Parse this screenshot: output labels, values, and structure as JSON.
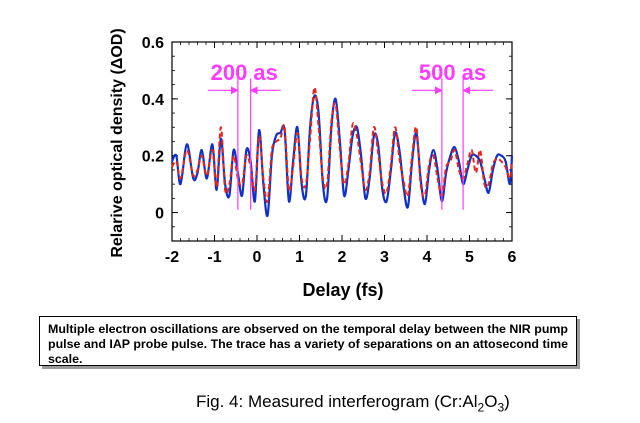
{
  "chart_data": {
    "type": "line",
    "title": "",
    "xlabel": "Delay (fs)",
    "ylabel": "Relarive optical density (ΔOD)",
    "xlim": [
      -2,
      6
    ],
    "ylim": [
      -0.1,
      0.6
    ],
    "xticks": [
      "-2",
      "-1",
      "0",
      "1",
      "2",
      "3",
      "4",
      "5",
      "6"
    ],
    "yticks": [
      "0",
      "0.2",
      "0.4",
      "0.6"
    ],
    "grid": false,
    "legend": "none",
    "series": [
      {
        "color": "#1030c8",
        "style": "solid",
        "x": [
          -2.0,
          -1.9,
          -1.8,
          -1.65,
          -1.5,
          -1.4,
          -1.3,
          -1.18,
          -1.05,
          -0.95,
          -0.85,
          -0.75,
          -0.65,
          -0.55,
          -0.45,
          -0.35,
          -0.25,
          -0.15,
          -0.05,
          0.05,
          0.15,
          0.25,
          0.35,
          0.45,
          0.55,
          0.65,
          0.75,
          0.85,
          0.95,
          1.05,
          1.15,
          1.25,
          1.35,
          1.45,
          1.55,
          1.65,
          1.75,
          1.85,
          1.95,
          2.05,
          2.15,
          2.25,
          2.35,
          2.45,
          2.55,
          2.65,
          2.75,
          2.85,
          2.95,
          3.05,
          3.15,
          3.25,
          3.35,
          3.45,
          3.55,
          3.65,
          3.75,
          3.85,
          3.95,
          4.05,
          4.15,
          4.25,
          4.35,
          4.45,
          4.55,
          4.65,
          4.75,
          4.85,
          4.95,
          5.05,
          5.15,
          5.25,
          5.35,
          5.45,
          5.55,
          5.65,
          5.75,
          5.85,
          5.95,
          6.0
        ],
        "y": [
          0.18,
          0.2,
          0.1,
          0.24,
          0.12,
          0.14,
          0.22,
          0.12,
          0.24,
          0.08,
          0.26,
          0.1,
          0.06,
          0.22,
          0.14,
          0.06,
          0.22,
          0.18,
          0.04,
          0.29,
          0.1,
          -0.01,
          0.2,
          0.27,
          0.28,
          0.29,
          0.04,
          0.18,
          0.3,
          0.1,
          0.06,
          0.3,
          0.41,
          0.35,
          0.1,
          0.05,
          0.3,
          0.4,
          0.25,
          0.06,
          0.15,
          0.27,
          0.3,
          0.2,
          0.05,
          0.12,
          0.27,
          0.24,
          0.08,
          0.04,
          0.15,
          0.28,
          0.22,
          0.09,
          0.02,
          0.18,
          0.28,
          0.12,
          0.03,
          0.15,
          0.22,
          0.15,
          0.04,
          0.14,
          0.2,
          0.23,
          0.18,
          0.1,
          0.15,
          0.2,
          0.2,
          0.18,
          0.12,
          0.07,
          0.15,
          0.2,
          0.2,
          0.18,
          0.1,
          0.2
        ]
      },
      {
        "color": "#e0261e",
        "style": "dashed",
        "x": [
          -2.0,
          -1.9,
          -1.8,
          -1.65,
          -1.5,
          -1.4,
          -1.3,
          -1.18,
          -1.05,
          -0.95,
          -0.85,
          -0.75,
          -0.65,
          -0.55,
          -0.45,
          -0.35,
          -0.25,
          -0.15,
          -0.05,
          0.05,
          0.15,
          0.25,
          0.35,
          0.45,
          0.55,
          0.65,
          0.75,
          0.85,
          0.95,
          1.05,
          1.15,
          1.25,
          1.35,
          1.45,
          1.55,
          1.65,
          1.75,
          1.85,
          1.95,
          2.05,
          2.15,
          2.25,
          2.35,
          2.45,
          2.55,
          2.65,
          2.75,
          2.85,
          2.95,
          3.05,
          3.15,
          3.25,
          3.35,
          3.45,
          3.55,
          3.65,
          3.75,
          3.85,
          3.95,
          4.05,
          4.15,
          4.25,
          4.35,
          4.45,
          4.55,
          4.65,
          4.75,
          4.85,
          4.95,
          5.05,
          5.15,
          5.25,
          5.35,
          5.45,
          5.55,
          5.65,
          5.75,
          5.85,
          5.95,
          6.0
        ],
        "y": [
          0.16,
          0.18,
          0.12,
          0.22,
          0.13,
          0.15,
          0.2,
          0.13,
          0.22,
          0.09,
          0.3,
          0.08,
          0.1,
          0.2,
          0.12,
          0.1,
          0.2,
          0.16,
          0.08,
          0.27,
          0.12,
          0.04,
          0.22,
          0.25,
          0.26,
          0.3,
          0.08,
          0.16,
          0.28,
          0.12,
          0.1,
          0.26,
          0.44,
          0.3,
          0.12,
          0.1,
          0.32,
          0.38,
          0.22,
          0.1,
          0.17,
          0.31,
          0.27,
          0.17,
          0.08,
          0.14,
          0.3,
          0.21,
          0.1,
          0.07,
          0.17,
          0.3,
          0.19,
          0.11,
          0.06,
          0.2,
          0.3,
          0.1,
          0.06,
          0.17,
          0.2,
          0.12,
          0.06,
          0.16,
          0.18,
          0.22,
          0.15,
          0.12,
          0.17,
          0.22,
          0.14,
          0.22,
          0.1,
          0.1,
          0.17,
          0.19,
          0.18,
          0.16,
          0.12,
          0.18
        ]
      }
    ],
    "annotations": [
      {
        "text": "200 as",
        "color": "#ff3cff",
        "x1": -0.45,
        "x2": -0.15,
        "y": 0.43
      },
      {
        "text": "500 as",
        "color": "#ff3cff",
        "x1": 4.35,
        "x2": 4.85,
        "y": 0.43
      }
    ]
  },
  "caption_box": "Multiple electron oscillations are observed on the temporal delay between the NIR pump pulse and IAP probe pulse. The trace has a variety of separations on an attosecond time scale.",
  "figure_caption": {
    "prefix": "Fig. 4: Measured interferogram (Cr:Al",
    "sub1": "2",
    "mid": "O",
    "sub2": "3",
    "suffix": ")"
  }
}
